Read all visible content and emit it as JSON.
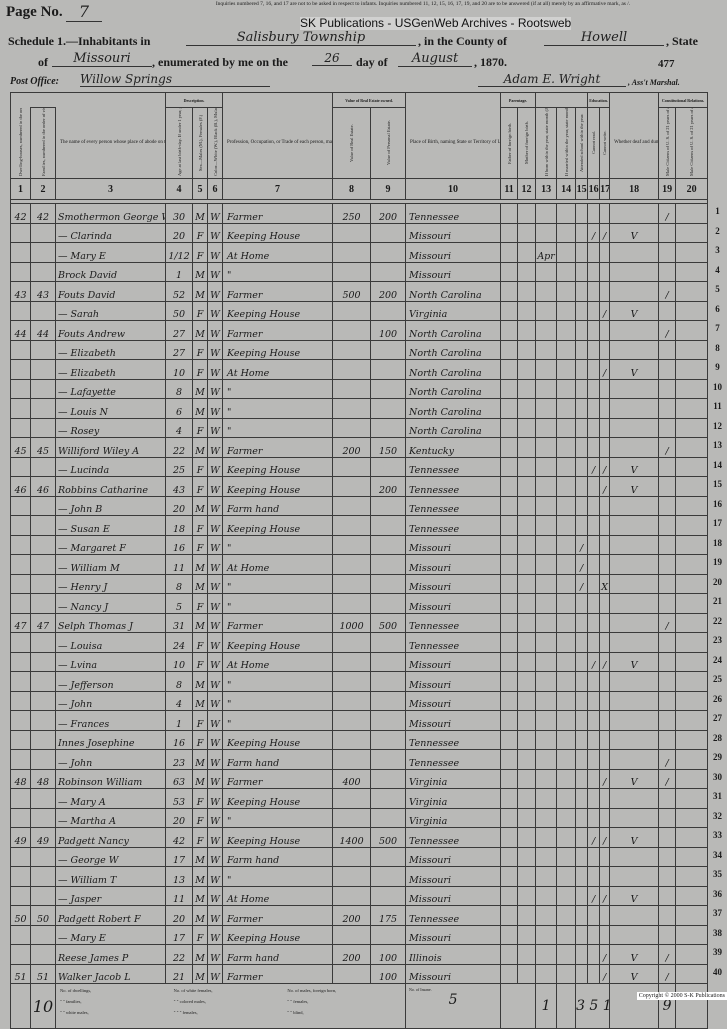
{
  "header": {
    "page_label": "Page No.",
    "page_number": "7",
    "instructions": "Inquiries numbered 7, 16, and 17 are not to be asked in respect to infants. Inquiries numbered 11, 12, 15, 16, 17, 19, and 20 are to be answered (if at all) merely by an affirmative mark, as /.",
    "watermark": "SK Publications - USGenWeb Archives - Rootsweb",
    "schedule_label": "Schedule 1.—Inhabitants in",
    "township": "Salisbury Township",
    "county_label": ", in the County of",
    "county": "Howell",
    "state_label": ", State",
    "of_label": "of",
    "state": "Missouri",
    "enumerated_label": ", enumerated by me on the",
    "day": "26",
    "day_of_label": "day of",
    "month": "August",
    "year": ", 1870.",
    "stamp_number": "477",
    "post_office_label": "Post Office:",
    "post_office": "Willow Springs",
    "marshal": "Adam E. Wright",
    "marshal_label": ", Ass't Marshal."
  },
  "groups": {
    "description": "Description.",
    "value": "Value of Real Estate owned.",
    "parentage": "Parentage.",
    "education": "Education.",
    "constitutional": "Constitutional Relations."
  },
  "columns": [
    {
      "num": "1",
      "label": "Dwelling-houses, numbered in the order of visitation."
    },
    {
      "num": "2",
      "label": "Families, numbered in the order of visitation."
    },
    {
      "num": "3",
      "label": "The name of every person whose place of abode on the first day of June, 1870, was in this family."
    },
    {
      "num": "4",
      "label": "Age at last birth-day. If under 1 year, give months in fractions, thus, 3/12."
    },
    {
      "num": "5",
      "label": "Sex—Males (M.), Females (F.)"
    },
    {
      "num": "6",
      "label": "Color—White (W.), Black (B.), Mulatto (M.), Chinese (C.), Indian (I.)"
    },
    {
      "num": "7",
      "label": "Profession, Occupation, or Trade of each person, male or female."
    },
    {
      "num": "8",
      "label": "Value of Real Estate."
    },
    {
      "num": "9",
      "label": "Value of Personal Estate."
    },
    {
      "num": "10",
      "label": "Place of Birth, naming State or Territory of U. S.; or the Country, if of foreign birth."
    },
    {
      "num": "11",
      "label": "Father of foreign birth."
    },
    {
      "num": "12",
      "label": "Mother of foreign birth."
    },
    {
      "num": "13",
      "label": "If born within the year, state month (Jan., Feb., &c.)"
    },
    {
      "num": "14",
      "label": "If married within the year, state month (Jan., Feb., &c.)"
    },
    {
      "num": "15",
      "label": "Attended school within the year."
    },
    {
      "num": "16",
      "label": "Cannot read."
    },
    {
      "num": "17",
      "label": "Cannot write."
    },
    {
      "num": "18",
      "label": "Whether deaf and dumb, blind, insane, or idiotic."
    },
    {
      "num": "19",
      "label": "Male Citizens of U. S. of 21 years of age and upwards."
    },
    {
      "num": "20",
      "label": "Male Citizens of U. S. of 21 years of age and upwards, whose right to vote is denied or abridged on other grounds than rebellion or other crime."
    }
  ],
  "rows": [
    {
      "line": "1",
      "c": [
        "42",
        "42",
        "Smothermon George W",
        "30",
        "M",
        "W",
        "Farmer",
        "250",
        "200",
        "Tennessee",
        "",
        "",
        "",
        "",
        "",
        "",
        "",
        "",
        "/",
        ""
      ]
    },
    {
      "line": "2",
      "c": [
        "",
        "",
        "— Clarinda",
        "20",
        "F",
        "W",
        "Keeping House",
        "",
        "",
        "Missouri",
        "",
        "",
        "",
        "",
        "",
        "/",
        "/",
        "V",
        "",
        ""
      ]
    },
    {
      "line": "3",
      "c": [
        "",
        "",
        "— Mary E",
        "1/12",
        "F",
        "W",
        "At Home",
        "",
        "",
        "Missouri",
        "",
        "",
        "Apr",
        "",
        "",
        "",
        "",
        "",
        "",
        ""
      ]
    },
    {
      "line": "4",
      "c": [
        "",
        "",
        "Brock David",
        "1",
        "M",
        "W",
        "\"",
        "",
        "",
        "Missouri",
        "",
        "",
        "",
        "",
        "",
        "",
        "",
        "",
        "",
        ""
      ]
    },
    {
      "line": "5",
      "c": [
        "43",
        "43",
        "Fouts David",
        "52",
        "M",
        "W",
        "Farmer",
        "500",
        "200",
        "North Carolina",
        "",
        "",
        "",
        "",
        "",
        "",
        "",
        "",
        "/",
        ""
      ]
    },
    {
      "line": "6",
      "c": [
        "",
        "",
        "— Sarah",
        "50",
        "F",
        "W",
        "Keeping House",
        "",
        "",
        "Virginia",
        "",
        "",
        "",
        "",
        "",
        "",
        "/",
        "V",
        "",
        ""
      ]
    },
    {
      "line": "7",
      "c": [
        "44",
        "44",
        "Fouts Andrew",
        "27",
        "M",
        "W",
        "Farmer",
        "",
        "100",
        "North Carolina",
        "",
        "",
        "",
        "",
        "",
        "",
        "",
        "",
        "/",
        ""
      ]
    },
    {
      "line": "8",
      "c": [
        "",
        "",
        "— Elizabeth",
        "27",
        "F",
        "W",
        "Keeping House",
        "",
        "",
        "North Carolina",
        "",
        "",
        "",
        "",
        "",
        "",
        "",
        "",
        "",
        ""
      ]
    },
    {
      "line": "9",
      "c": [
        "",
        "",
        "— Elizabeth",
        "10",
        "F",
        "W",
        "At Home",
        "",
        "",
        "North Carolina",
        "",
        "",
        "",
        "",
        "",
        "",
        "/",
        "V",
        "",
        ""
      ]
    },
    {
      "line": "10",
      "c": [
        "",
        "",
        "— Lafayette",
        "8",
        "M",
        "W",
        "\"",
        "",
        "",
        "North Carolina",
        "",
        "",
        "",
        "",
        "",
        "",
        "",
        "",
        "",
        ""
      ]
    },
    {
      "line": "11",
      "c": [
        "",
        "",
        "— Louis N",
        "6",
        "M",
        "W",
        "\"",
        "",
        "",
        "North Carolina",
        "",
        "",
        "",
        "",
        "",
        "",
        "",
        "",
        "",
        ""
      ]
    },
    {
      "line": "12",
      "c": [
        "",
        "",
        "— Rosey",
        "4",
        "F",
        "W",
        "\"",
        "",
        "",
        "North Carolina",
        "",
        "",
        "",
        "",
        "",
        "",
        "",
        "",
        "",
        ""
      ]
    },
    {
      "line": "13",
      "c": [
        "45",
        "45",
        "Williford Wiley A",
        "22",
        "M",
        "W",
        "Farmer",
        "200",
        "150",
        "Kentucky",
        "",
        "",
        "",
        "",
        "",
        "",
        "",
        "",
        "/",
        ""
      ]
    },
    {
      "line": "14",
      "c": [
        "",
        "",
        "— Lucinda",
        "25",
        "F",
        "W",
        "Keeping House",
        "",
        "",
        "Tennessee",
        "",
        "",
        "",
        "",
        "",
        "/",
        "/",
        "V",
        "",
        ""
      ]
    },
    {
      "line": "15",
      "c": [
        "46",
        "46",
        "Robbins Catharine",
        "43",
        "F",
        "W",
        "Keeping House",
        "",
        "200",
        "Tennessee",
        "",
        "",
        "",
        "",
        "",
        "",
        "/",
        "V",
        "",
        ""
      ]
    },
    {
      "line": "16",
      "c": [
        "",
        "",
        "— John B",
        "20",
        "M",
        "W",
        "Farm hand",
        "",
        "",
        "Tennessee",
        "",
        "",
        "",
        "",
        "",
        "",
        "",
        "",
        "",
        ""
      ]
    },
    {
      "line": "17",
      "c": [
        "",
        "",
        "— Susan E",
        "18",
        "F",
        "W",
        "Keeping House",
        "",
        "",
        "Tennessee",
        "",
        "",
        "",
        "",
        "",
        "",
        "",
        "",
        "",
        ""
      ]
    },
    {
      "line": "18",
      "c": [
        "",
        "",
        "— Margaret F",
        "16",
        "F",
        "W",
        "\"",
        "",
        "",
        "Missouri",
        "",
        "",
        "",
        "",
        "/",
        "",
        "",
        "",
        "",
        ""
      ]
    },
    {
      "line": "19",
      "c": [
        "",
        "",
        "— William M",
        "11",
        "M",
        "W",
        "At Home",
        "",
        "",
        "Missouri",
        "",
        "",
        "",
        "",
        "/",
        "",
        "",
        "",
        "",
        ""
      ]
    },
    {
      "line": "20",
      "c": [
        "",
        "",
        "— Henry J",
        "8",
        "M",
        "W",
        "\"",
        "",
        "",
        "Missouri",
        "",
        "",
        "",
        "",
        "/",
        "",
        "X",
        "",
        "",
        ""
      ]
    },
    {
      "line": "21",
      "c": [
        "",
        "",
        "— Nancy J",
        "5",
        "F",
        "W",
        "\"",
        "",
        "",
        "Missouri",
        "",
        "",
        "",
        "",
        "",
        "",
        "",
        "",
        "",
        ""
      ]
    },
    {
      "line": "22",
      "c": [
        "47",
        "47",
        "Selph Thomas J",
        "31",
        "M",
        "W",
        "Farmer",
        "1000",
        "500",
        "Tennessee",
        "",
        "",
        "",
        "",
        "",
        "",
        "",
        "",
        "/",
        ""
      ]
    },
    {
      "line": "23",
      "c": [
        "",
        "",
        "— Louisa",
        "24",
        "F",
        "W",
        "Keeping House",
        "",
        "",
        "Tennessee",
        "",
        "",
        "",
        "",
        "",
        "",
        "",
        "",
        "",
        ""
      ]
    },
    {
      "line": "24",
      "c": [
        "",
        "",
        "— Lvina",
        "10",
        "F",
        "W",
        "At Home",
        "",
        "",
        "Missouri",
        "",
        "",
        "",
        "",
        "",
        "/",
        "/",
        "V",
        "",
        ""
      ]
    },
    {
      "line": "25",
      "c": [
        "",
        "",
        "— Jefferson",
        "8",
        "M",
        "W",
        "\"",
        "",
        "",
        "Missouri",
        "",
        "",
        "",
        "",
        "",
        "",
        "",
        "",
        "",
        ""
      ]
    },
    {
      "line": "26",
      "c": [
        "",
        "",
        "— John",
        "4",
        "M",
        "W",
        "\"",
        "",
        "",
        "Missouri",
        "",
        "",
        "",
        "",
        "",
        "",
        "",
        "",
        "",
        ""
      ]
    },
    {
      "line": "27",
      "c": [
        "",
        "",
        "— Frances",
        "1",
        "F",
        "W",
        "\"",
        "",
        "",
        "Missouri",
        "",
        "",
        "",
        "",
        "",
        "",
        "",
        "",
        "",
        ""
      ]
    },
    {
      "line": "28",
      "c": [
        "",
        "",
        "Innes Josephine",
        "16",
        "F",
        "W",
        "Keeping House",
        "",
        "",
        "Tennessee",
        "",
        "",
        "",
        "",
        "",
        "",
        "",
        "",
        "",
        ""
      ]
    },
    {
      "line": "29",
      "c": [
        "",
        "",
        "— John",
        "23",
        "M",
        "W",
        "Farm hand",
        "",
        "",
        "Tennessee",
        "",
        "",
        "",
        "",
        "",
        "",
        "",
        "",
        "/",
        ""
      ]
    },
    {
      "line": "30",
      "c": [
        "48",
        "48",
        "Robinson William",
        "63",
        "M",
        "W",
        "Farmer",
        "400",
        "",
        "Virginia",
        "",
        "",
        "",
        "",
        "",
        "",
        "/",
        "V",
        "/",
        ""
      ]
    },
    {
      "line": "31",
      "c": [
        "",
        "",
        "— Mary A",
        "53",
        "F",
        "W",
        "Keeping House",
        "",
        "",
        "Virginia",
        "",
        "",
        "",
        "",
        "",
        "",
        "",
        "",
        "",
        ""
      ]
    },
    {
      "line": "32",
      "c": [
        "",
        "",
        "— Martha A",
        "20",
        "F",
        "W",
        "\"",
        "",
        "",
        "Virginia",
        "",
        "",
        "",
        "",
        "",
        "",
        "",
        "",
        "",
        ""
      ]
    },
    {
      "line": "33",
      "c": [
        "49",
        "49",
        "Padgett Nancy",
        "42",
        "F",
        "W",
        "Keeping House",
        "1400",
        "500",
        "Tennessee",
        "",
        "",
        "",
        "",
        "",
        "/",
        "/",
        "V",
        "",
        ""
      ]
    },
    {
      "line": "34",
      "c": [
        "",
        "",
        "— George W",
        "17",
        "M",
        "W",
        "Farm hand",
        "",
        "",
        "Missouri",
        "",
        "",
        "",
        "",
        "",
        "",
        "",
        "",
        "",
        ""
      ]
    },
    {
      "line": "35",
      "c": [
        "",
        "",
        "— William T",
        "13",
        "M",
        "W",
        "\"",
        "",
        "",
        "Missouri",
        "",
        "",
        "",
        "",
        "",
        "",
        "",
        "",
        "",
        ""
      ]
    },
    {
      "line": "36",
      "c": [
        "",
        "",
        "— Jasper",
        "11",
        "M",
        "W",
        "At Home",
        "",
        "",
        "Missouri",
        "",
        "",
        "",
        "",
        "",
        "/",
        "/",
        "V",
        "",
        ""
      ]
    },
    {
      "line": "37",
      "c": [
        "50",
        "50",
        "Padgett Robert F",
        "20",
        "M",
        "W",
        "Farmer",
        "200",
        "175",
        "Tennessee",
        "",
        "",
        "",
        "",
        "",
        "",
        "",
        "",
        "",
        ""
      ]
    },
    {
      "line": "38",
      "c": [
        "",
        "",
        "— Mary E",
        "17",
        "F",
        "W",
        "Keeping House",
        "",
        "",
        "Missouri",
        "",
        "",
        "",
        "",
        "",
        "",
        "",
        "",
        "",
        ""
      ]
    },
    {
      "line": "39",
      "c": [
        "",
        "",
        "Reese James P",
        "22",
        "M",
        "W",
        "Farm hand",
        "200",
        "100",
        "Illinois",
        "",
        "",
        "",
        "",
        "",
        "",
        "/",
        "V",
        "/",
        ""
      ]
    },
    {
      "line": "40",
      "c": [
        "51",
        "51",
        "Walker Jacob L",
        "21",
        "M",
        "W",
        "Farmer",
        "",
        "100",
        "Missouri",
        "",
        "",
        "",
        "",
        "",
        "",
        "/",
        "V",
        "/",
        ""
      ]
    }
  ],
  "footer": {
    "dwellings_count": "10",
    "labels": [
      "No. of dwellings,",
      "No. of white females,",
      "No. of males, foreign born,",
      "\" \" families,",
      "\" \" colored males,",
      "\" \" females,",
      "\" \" white males,",
      "\" \" \" females,",
      "\" \" blind,"
    ],
    "insane_label": "No. of Insane.",
    "insane_count": "5",
    "total_col13": "1",
    "total_col15_17": "3 5 11",
    "total_col19": "9"
  },
  "copyright": "Copyright © 2000 S-K Publications"
}
